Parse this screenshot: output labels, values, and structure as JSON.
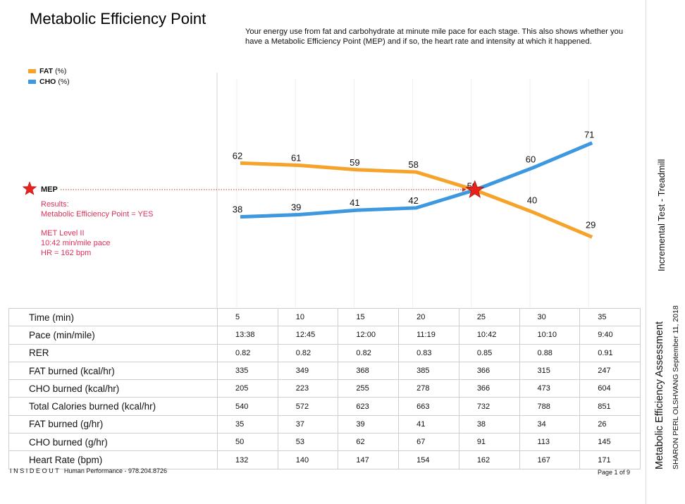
{
  "title": "Metabolic Efficiency Point",
  "description": "Your energy use from fat and carbohydrate at minute mile pace for each stage. This also shows whether you have a Metabolic Efficiency Point (MEP) and if so, the heart rate and intensity at which it happened.",
  "colors": {
    "fat": "#f5a32a",
    "cho": "#3d98e0",
    "marker": "#e8211c",
    "results_text": "#e0305a"
  },
  "legend": [
    {
      "name": "FAT",
      "unit": "(%)"
    },
    {
      "name": "CHO",
      "unit": "(%)"
    }
  ],
  "chart_data": {
    "type": "line",
    "x": [
      5,
      10,
      15,
      20,
      25,
      30,
      35
    ],
    "series": [
      {
        "name": "FAT",
        "values": [
          62,
          61,
          59,
          58,
          50,
          40,
          29
        ],
        "labels": [
          "62",
          "61",
          "59",
          "58",
          "50",
          "40",
          "29"
        ]
      },
      {
        "name": "CHO",
        "values": [
          38,
          39,
          41,
          42,
          50,
          60,
          71
        ],
        "labels": [
          "38",
          "39",
          "41",
          "42",
          "",
          "60",
          "71"
        ]
      }
    ],
    "mep": {
      "x": 25,
      "y": 50,
      "marker": "star"
    },
    "grid": true
  },
  "mep": {
    "label": "MEP",
    "results": [
      "Results:",
      "Metabolic Efficiency Point = YES",
      "",
      "MET Level II",
      "10:42 min/mile pace",
      "HR = 162 bpm"
    ]
  },
  "table": {
    "rows": [
      {
        "label": "Time (min)",
        "values": [
          "5",
          "10",
          "15",
          "20",
          "25",
          "30",
          "35"
        ]
      },
      {
        "label": "Pace (min/mile)",
        "values": [
          "13:38",
          "12:45",
          "12:00",
          "11:19",
          "10:42",
          "10:10",
          "9:40"
        ]
      },
      {
        "label": "RER",
        "values": [
          "0.82",
          "0.82",
          "0.82",
          "0.83",
          "0.85",
          "0.88",
          "0.91"
        ]
      },
      {
        "label": "FAT burned (kcal/hr)",
        "values": [
          "335",
          "349",
          "368",
          "385",
          "366",
          "315",
          "247"
        ]
      },
      {
        "label": "CHO burned (kcal/hr)",
        "values": [
          "205",
          "223",
          "255",
          "278",
          "366",
          "473",
          "604"
        ]
      },
      {
        "label": "Total Calories burned (kcal/hr)",
        "values": [
          "540",
          "572",
          "623",
          "663",
          "732",
          "788",
          "851"
        ]
      },
      {
        "label": "FAT burned (g/hr)",
        "values": [
          "35",
          "37",
          "39",
          "41",
          "38",
          "34",
          "26"
        ]
      },
      {
        "label": "CHO burned (g/hr)",
        "values": [
          "50",
          "53",
          "62",
          "67",
          "91",
          "113",
          "145"
        ]
      },
      {
        "label": "Heart Rate (bpm)",
        "values": [
          "132",
          "140",
          "147",
          "154",
          "162",
          "167",
          "171"
        ]
      }
    ]
  },
  "side": {
    "test_type": "Incremental Test - Treadmill",
    "report_title": "Metabolic Efficiency Assessment",
    "client_date": "SHARON PERL OLSHVANG  September 11, 2018"
  },
  "footer": {
    "brand": "INSIDEOUT",
    "company": "Human Performance - 978.204.8726",
    "page": "Page 1 of 9"
  }
}
